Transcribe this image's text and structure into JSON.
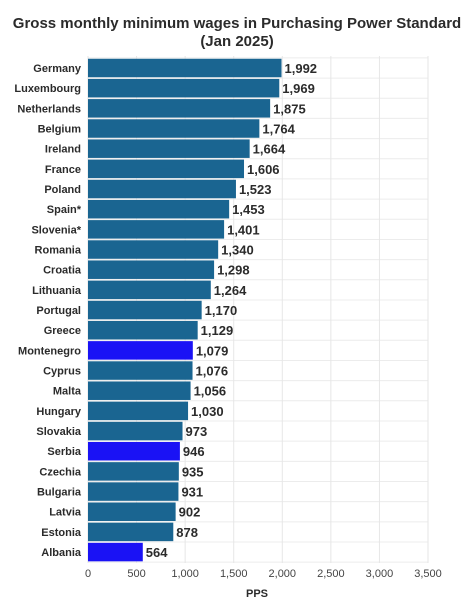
{
  "chart_data": {
    "type": "bar",
    "orientation": "horizontal",
    "title": "Gross monthly minimum wages in Purchasing Power Standard",
    "subtitle": "(Jan 2025)",
    "xlabel": "PPS",
    "ylabel": "",
    "xlim": [
      0,
      3500
    ],
    "xticks": [
      0,
      500,
      1000,
      1500,
      2000,
      2500,
      3000,
      3500
    ],
    "xtick_labels": [
      "0",
      "500",
      "1,000",
      "1,500",
      "2,000",
      "2,500",
      "3,000",
      "3,500"
    ],
    "grid": true,
    "categories": [
      "Germany",
      "Luxembourg",
      "Netherlands",
      "Belgium",
      "Ireland",
      "France",
      "Poland",
      "Spain*",
      "Slovenia*",
      "Romania",
      "Croatia",
      "Lithuania",
      "Portugal",
      "Greece",
      "Montenegro",
      "Cyprus",
      "Malta",
      "Hungary",
      "Slovakia",
      "Serbia",
      "Czechia",
      "Bulgaria",
      "Latvia",
      "Estonia",
      "Albania"
    ],
    "values": [
      1992,
      1969,
      1875,
      1764,
      1664,
      1606,
      1523,
      1453,
      1401,
      1340,
      1298,
      1264,
      1170,
      1129,
      1079,
      1076,
      1056,
      1030,
      973,
      946,
      935,
      931,
      902,
      878,
      564
    ],
    "value_labels": [
      "1,992",
      "1,969",
      "1,875",
      "1,764",
      "1,664",
      "1,606",
      "1,523",
      "1,453",
      "1,401",
      "1,340",
      "1,298",
      "1,264",
      "1,170",
      "1,129",
      "1,079",
      "1,076",
      "1,056",
      "1,030",
      "973",
      "946",
      "935",
      "931",
      "902",
      "878",
      "564"
    ],
    "highlighted": [
      "Montenegro",
      "Serbia",
      "Albania"
    ],
    "colors": {
      "default": "#1a6591",
      "highlight": "#1a12f5"
    }
  }
}
